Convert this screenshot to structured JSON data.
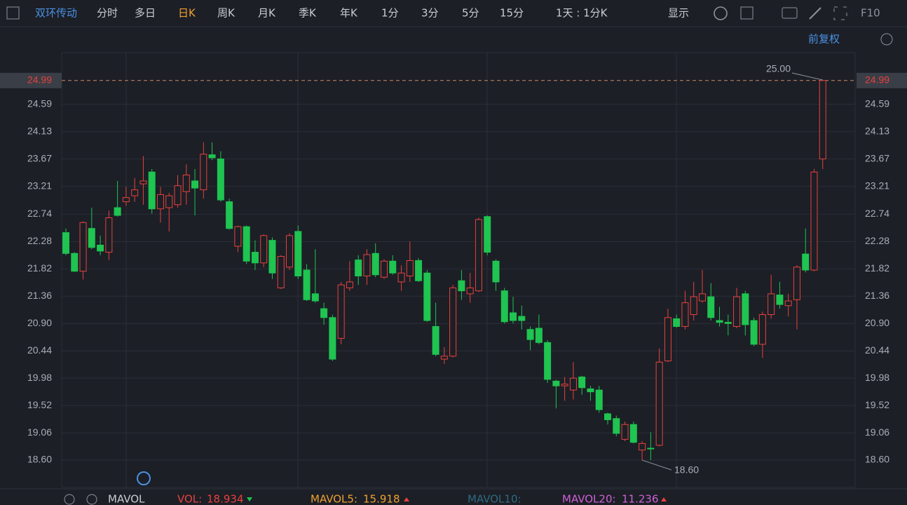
{
  "toolbar": {
    "stock": "双环传动",
    "tabs": [
      "分时",
      "多日",
      "日K",
      "周K",
      "月K",
      "季K",
      "年K",
      "1分",
      "3分",
      "5分",
      "15分"
    ],
    "active_tab": 2,
    "period": "1天 : 1分K",
    "display": "显示",
    "f10": "F10"
  },
  "adjust": "前复权",
  "chart_data": {
    "type": "candlestick",
    "open": [
      22.43,
      22.08,
      21.78,
      22.5,
      22.22,
      22.1,
      22.85,
      22.95,
      23.05,
      23.25,
      23.45,
      22.83,
      22.85,
      22.9,
      23.12,
      23.3,
      23.15,
      23.74,
      23.67,
      22.95,
      22.2,
      22.53,
      22.1,
      21.92,
      22.3,
      21.5,
      21.85,
      22.45,
      21.8,
      21.4,
      21.15,
      21.0,
      20.65,
      21.5,
      21.97,
      21.7,
      22.08,
      21.68,
      21.95,
      21.6,
      21.7,
      21.96,
      21.75,
      20.85,
      20.3,
      20.35,
      21.62,
      21.4,
      21.45,
      22.7,
      21.95,
      21.45,
      21.08,
      21.02,
      20.8,
      20.82,
      20.58,
      19.93,
      19.85,
      19.78,
      20.0,
      19.8,
      19.78,
      19.38,
      19.3,
      18.95,
      19.2,
      18.77,
      18.8,
      18.85,
      20.27,
      20.98,
      20.85,
      21.05,
      21.28,
      21.35,
      20.95,
      20.92,
      20.85,
      21.4,
      20.95,
      20.55,
      21.05,
      21.38,
      21.2,
      21.3,
      22.07,
      21.8,
      23.67
    ],
    "high": [
      22.5,
      22.1,
      22.62,
      22.85,
      22.38,
      22.8,
      23.3,
      23.2,
      23.35,
      23.72,
      23.5,
      23.2,
      23.1,
      23.4,
      23.58,
      23.5,
      23.95,
      23.95,
      23.8,
      23.0,
      22.55,
      22.55,
      22.3,
      22.4,
      22.35,
      22.05,
      22.42,
      22.55,
      21.9,
      22.15,
      21.25,
      21.05,
      21.6,
      21.95,
      22.05,
      22.15,
      22.25,
      21.98,
      22.05,
      21.88,
      22.28,
      22.0,
      21.8,
      21.25,
      20.5,
      21.55,
      21.8,
      21.75,
      22.68,
      22.72,
      21.98,
      21.5,
      21.35,
      21.2,
      20.85,
      21.05,
      20.62,
      19.95,
      20.0,
      20.25,
      20.02,
      19.85,
      19.85,
      19.4,
      19.35,
      19.25,
      19.25,
      18.92,
      19.07,
      20.48,
      21.15,
      21.05,
      21.45,
      21.6,
      21.8,
      21.58,
      21.18,
      21.05,
      21.5,
      21.45,
      21.0,
      21.1,
      21.72,
      21.6,
      21.4,
      21.88,
      22.5,
      23.5,
      25.0
    ],
    "low": [
      22.05,
      21.77,
      21.64,
      22.15,
      22.05,
      21.97,
      22.7,
      22.88,
      22.95,
      22.9,
      22.75,
      22.6,
      22.45,
      22.85,
      22.9,
      22.72,
      23.0,
      23.65,
      22.95,
      22.48,
      22.1,
      21.9,
      21.8,
      21.85,
      21.65,
      21.48,
      21.8,
      21.65,
      21.28,
      21.25,
      20.88,
      20.27,
      20.55,
      21.45,
      21.55,
      21.55,
      21.68,
      21.65,
      21.72,
      21.45,
      21.6,
      21.6,
      20.93,
      20.35,
      20.22,
      20.33,
      21.3,
      21.25,
      21.43,
      22.05,
      21.45,
      20.9,
      20.9,
      20.8,
      20.45,
      20.55,
      19.9,
      19.47,
      19.6,
      19.62,
      19.7,
      19.6,
      19.4,
      19.2,
      19.0,
      18.92,
      18.88,
      18.6,
      18.6,
      18.83,
      20.25,
      20.83,
      20.8,
      20.95,
      21.25,
      20.95,
      20.85,
      20.7,
      20.82,
      20.7,
      20.52,
      20.32,
      20.98,
      21.15,
      21.02,
      20.8,
      21.76,
      21.78,
      23.5
    ],
    "close": [
      22.08,
      21.78,
      22.6,
      22.18,
      22.12,
      22.68,
      22.72,
      23.02,
      23.15,
      23.3,
      22.83,
      23.07,
      23.05,
      23.22,
      23.4,
      23.18,
      23.75,
      23.69,
      22.98,
      22.5,
      22.53,
      21.95,
      21.92,
      22.38,
      21.75,
      22.03,
      22.38,
      21.7,
      21.3,
      21.28,
      21.0,
      20.3,
      21.55,
      21.6,
      21.7,
      22.06,
      21.72,
      21.95,
      21.75,
      21.75,
      21.96,
      21.62,
      20.95,
      20.38,
      20.35,
      21.5,
      21.45,
      21.5,
      22.65,
      22.1,
      21.6,
      20.93,
      20.95,
      20.95,
      20.63,
      20.58,
      19.96,
      19.85,
      19.88,
      19.98,
      19.82,
      19.75,
      19.45,
      19.28,
      19.05,
      19.2,
      18.9,
      18.88,
      18.79,
      20.25,
      21.0,
      20.85,
      21.25,
      21.35,
      21.4,
      21.0,
      20.92,
      20.9,
      21.35,
      20.88,
      20.55,
      21.05,
      21.4,
      21.22,
      21.28,
      21.85,
      21.8,
      23.45,
      24.99
    ],
    "up_color": "#e8413d",
    "down_color": "#1fc451",
    "ylim": [
      18.14,
      25.46
    ],
    "yticks": [
      {
        "value": 18.6,
        "label": "18.60"
      },
      19.06,
      19.52,
      19.98,
      20.44,
      {
        "value": 20.9,
        "label": "20.90"
      },
      21.36,
      21.82,
      22.28,
      22.74,
      23.21,
      23.67,
      24.13,
      24.59
    ],
    "last_price": 24.99,
    "max_mark": {
      "value": 25,
      "label": "25.00"
    },
    "min_mark": {
      "value": 18.6,
      "label": "18.60"
    }
  },
  "indicator": {
    "name": "MAVOL",
    "vol_label": "VOL:",
    "vol": "18.934",
    "ma5_label": "MAVOL5:",
    "ma5": "15.918",
    "ma10_label": "MAVOL10:",
    "ma20_label": "MAVOL20:",
    "ma20": "11.236"
  }
}
